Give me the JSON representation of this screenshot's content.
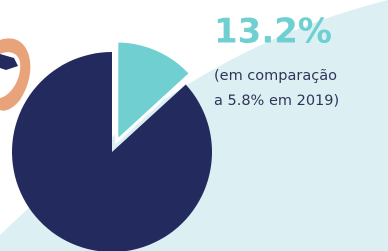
{
  "chart_data": {
    "type": "pie",
    "values": [
      13.2,
      86.8
    ],
    "value_labels": [
      "13.2%",
      null
    ],
    "colors": [
      "#6fcfd1",
      "#232a5e"
    ],
    "exploded": [
      true,
      false
    ],
    "annotation": [
      "(em comparação",
      "a 5.8% em 2019)"
    ]
  }
}
